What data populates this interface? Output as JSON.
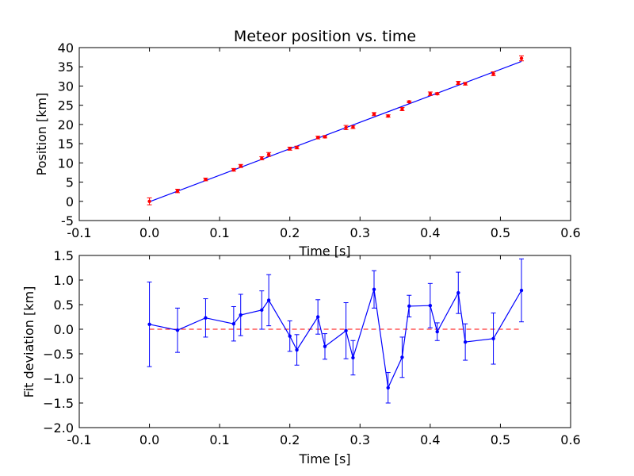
{
  "chart_data": [
    {
      "type": "scatter",
      "title": "Meteor position vs. time",
      "xlabel": "Time [s]",
      "ylabel": "Position [km]",
      "xlim": [
        -0.1,
        0.6
      ],
      "ylim": [
        -5,
        40
      ],
      "xticks": [
        "-0.1",
        "0.0",
        "0.1",
        "0.2",
        "0.3",
        "0.4",
        "0.5",
        "0.6"
      ],
      "yticks": [
        "-5",
        "0",
        "5",
        "10",
        "15",
        "20",
        "25",
        "30",
        "35",
        "40"
      ],
      "grid": false,
      "colors": {
        "points": "#ff0000",
        "fit_line": "#0000ff"
      },
      "series": [
        {
          "kind": "points-with-errorbars",
          "x": [
            0.0,
            0.04,
            0.08,
            0.12,
            0.13,
            0.16,
            0.17,
            0.2,
            0.21,
            0.24,
            0.25,
            0.28,
            0.29,
            0.32,
            0.34,
            0.36,
            0.37,
            0.4,
            0.41,
            0.44,
            0.45,
            0.49,
            0.53
          ],
          "y": [
            0.0,
            2.7,
            5.7,
            8.2,
            9.2,
            11.2,
            12.2,
            13.7,
            14.0,
            16.6,
            16.8,
            19.2,
            19.3,
            22.7,
            22.2,
            24.0,
            25.9,
            28.0,
            28.0,
            30.8,
            30.6,
            33.2,
            37.2
          ],
          "yerr": [
            0.9,
            0.45,
            0.35,
            0.35,
            0.4,
            0.4,
            0.5,
            0.4,
            0.35,
            0.35,
            0.3,
            0.55,
            0.35,
            0.4,
            0.3,
            0.4,
            0.22,
            0.45,
            0.25,
            0.42,
            0.35,
            0.5,
            0.65
          ]
        },
        {
          "kind": "fit-line",
          "x": [
            0.0,
            0.53
          ],
          "y": [
            -0.1,
            36.4
          ]
        }
      ]
    },
    {
      "type": "line",
      "title": "",
      "xlabel": "Time [s]",
      "ylabel": "Fit deviation [km]",
      "xlim": [
        -0.1,
        0.6
      ],
      "ylim": [
        -2.0,
        1.5
      ],
      "xticks": [
        "-0.1",
        "0.0",
        "0.1",
        "0.2",
        "0.3",
        "0.4",
        "0.5",
        "0.6"
      ],
      "yticks": [
        "−2.0",
        "−1.5",
        "−1.0",
        "−0.5",
        "0.0",
        "0.5",
        "1.0",
        "1.5"
      ],
      "grid": false,
      "colors": {
        "series": "#0000ff",
        "zero_line": "#ff0000"
      },
      "zero_line": 0.0,
      "series": [
        {
          "x": [
            0.0,
            0.04,
            0.08,
            0.12,
            0.13,
            0.16,
            0.17,
            0.2,
            0.21,
            0.24,
            0.25,
            0.28,
            0.29,
            0.32,
            0.34,
            0.36,
            0.37,
            0.4,
            0.41,
            0.44,
            0.45,
            0.49,
            0.53
          ],
          "y": [
            0.1,
            -0.02,
            0.23,
            0.11,
            0.29,
            0.39,
            0.59,
            -0.14,
            -0.42,
            0.25,
            -0.35,
            -0.03,
            -0.58,
            0.81,
            -1.19,
            -0.57,
            0.47,
            0.48,
            -0.05,
            0.74,
            -0.26,
            -0.19,
            0.79
          ],
          "yerr": [
            0.86,
            0.45,
            0.39,
            0.35,
            0.42,
            0.39,
            0.52,
            0.31,
            0.31,
            0.35,
            0.26,
            0.57,
            0.35,
            0.38,
            0.31,
            0.41,
            0.22,
            0.45,
            0.18,
            0.42,
            0.37,
            0.52,
            0.64
          ]
        }
      ]
    }
  ]
}
